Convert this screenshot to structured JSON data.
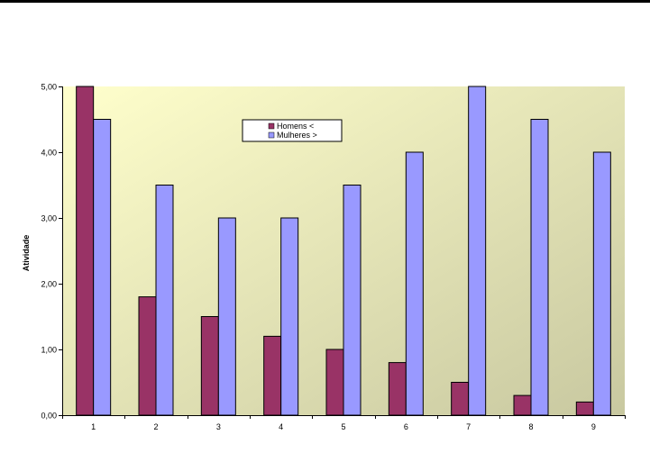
{
  "colors": {
    "series_1": "#993366",
    "series_2": "#9999ff",
    "plot_bg_light": "#ffffcc",
    "plot_bg_dark": "#c8c8a0"
  },
  "chart_data": {
    "type": "bar",
    "categories": [
      "1",
      "2",
      "3",
      "4",
      "5",
      "6",
      "7",
      "8",
      "9"
    ],
    "series": [
      {
        "name": "Homens <",
        "values": [
          5.0,
          1.8,
          1.5,
          1.2,
          1.0,
          0.8,
          0.5,
          0.3,
          0.2
        ]
      },
      {
        "name": "Mulheres >",
        "values": [
          4.5,
          3.5,
          3.0,
          3.0,
          3.5,
          4.0,
          5.0,
          4.5,
          4.0
        ]
      }
    ],
    "title": "",
    "xlabel": "",
    "ylabel": "Atividade",
    "ylim": [
      0,
      5
    ],
    "yticks": [
      0,
      1,
      2,
      3,
      4,
      5
    ],
    "ytick_labels": [
      "0,00",
      "1,00",
      "2,00",
      "3,00",
      "4,00",
      "5,00"
    ],
    "grid": false,
    "legend": "top-center"
  }
}
